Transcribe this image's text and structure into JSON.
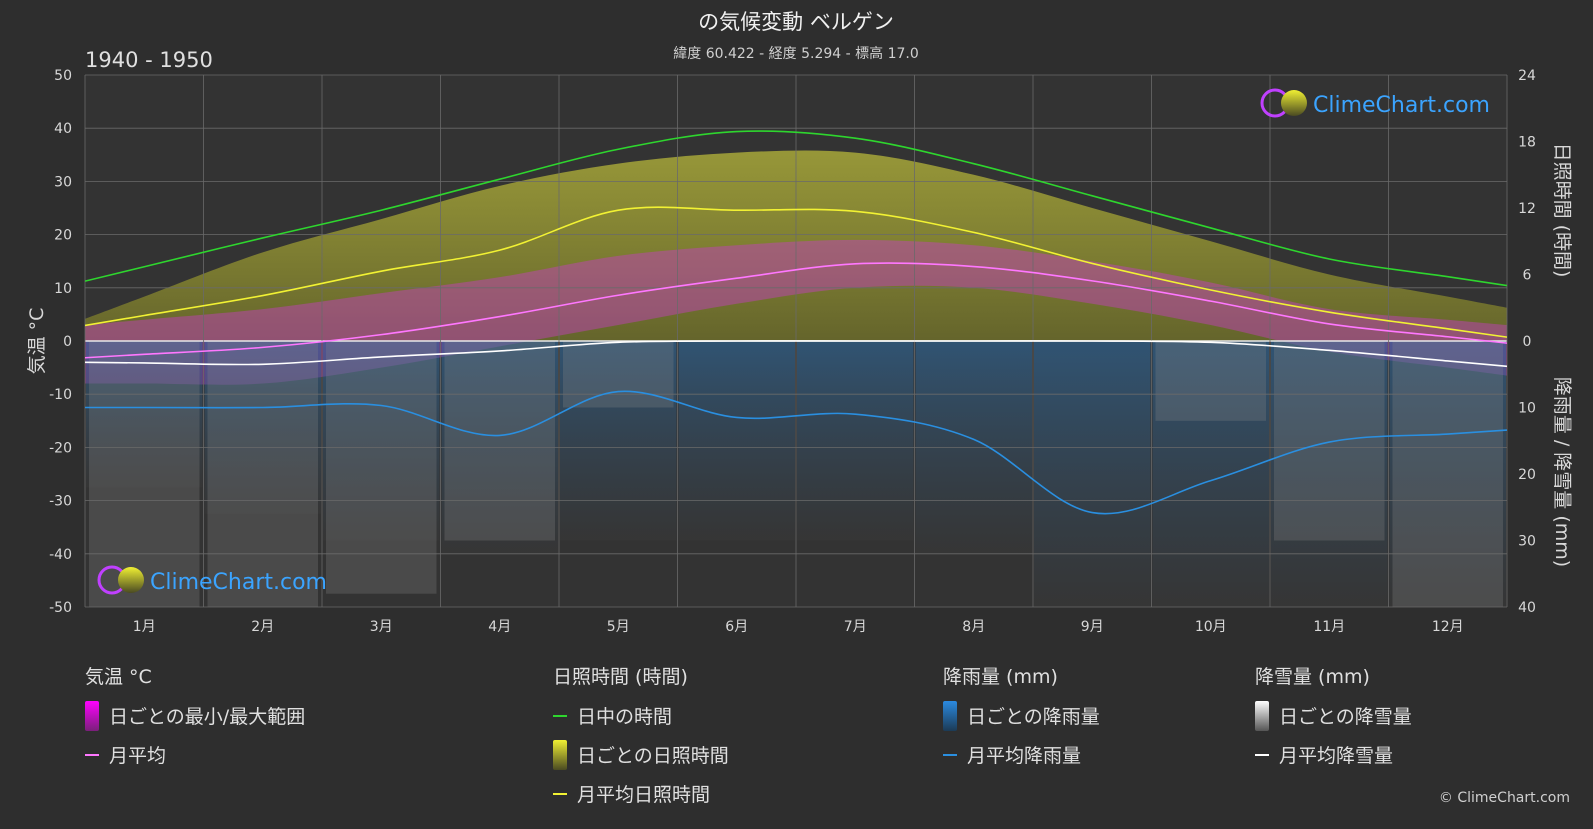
{
  "title": "の気候変動 ベルゲン",
  "subtitle": "緯度 60.422 - 経度 5.294 - 標高 17.0",
  "period": "1940 - 1950",
  "watermark": "ClimeChart.com",
  "copyright": "© ClimeChart.com",
  "colors": {
    "background": "#2e2e2e",
    "daylight": "#2ed62e",
    "sunshine_mean": "#f2f233",
    "sunshine_daily": "#a3a32c",
    "temp_range": "#c83cc8",
    "temp_mean": "#ff77ff",
    "rain_mean": "#2a8fe0",
    "rain_daily": "#2b6ea6",
    "snow_mean": "#ffffff",
    "snow_daily": "#9a9a9a",
    "brand": "#3ba4ff"
  },
  "chart_data": {
    "type": "line",
    "x_label_unit": "月",
    "categories": [
      "1月",
      "2月",
      "3月",
      "4月",
      "5月",
      "6月",
      "7月",
      "8月",
      "9月",
      "10月",
      "11月",
      "12月"
    ],
    "axes": {
      "left": {
        "label": "気温 °C",
        "range": [
          -50,
          50
        ],
        "ticks": [
          50,
          40,
          30,
          20,
          10,
          0,
          -10,
          -20,
          -30,
          -40,
          -50
        ]
      },
      "right_top": {
        "label": "日照時間 (時間)",
        "range": [
          0,
          24
        ],
        "ticks": [
          24,
          18,
          12,
          6,
          0
        ]
      },
      "right_bottom": {
        "label": "降雨量 / 降雪量 (mm)",
        "range": [
          0,
          40
        ],
        "ticks": [
          10,
          20,
          30,
          40
        ]
      }
    },
    "grid": true,
    "series": [
      {
        "name": "日中の時間",
        "unit": "時間",
        "values": [
          6.7,
          9.3,
          11.8,
          14.6,
          17.3,
          18.9,
          18.3,
          16.0,
          13.1,
          10.2,
          7.4,
          5.8
        ]
      },
      {
        "name": "月平均日照時間",
        "unit": "時間",
        "values": [
          2.3,
          4.1,
          6.3,
          8.2,
          11.8,
          11.8,
          11.7,
          9.8,
          7.0,
          4.6,
          2.6,
          1.1
        ]
      },
      {
        "name": "月平均",
        "unit": "°C",
        "values": [
          -2.5,
          -1.2,
          1.2,
          4.6,
          8.6,
          11.8,
          14.5,
          14.0,
          11.3,
          7.5,
          3.2,
          0.8
        ]
      },
      {
        "name": "月平均降雨量",
        "unit": "mm",
        "values": [
          10.0,
          10.0,
          9.7,
          14.2,
          7.6,
          11.5,
          11.0,
          14.8,
          25.8,
          21.0,
          15.2,
          14.0
        ]
      },
      {
        "name": "月平均降雪量",
        "unit": "mm",
        "values": [
          3.3,
          3.5,
          2.4,
          1.5,
          0.2,
          0,
          0,
          0,
          0,
          0.2,
          1.4,
          3.0
        ]
      }
    ],
    "daily_ranges": {
      "temp_min_max": {
        "min": [
          -8,
          -8,
          -5,
          -1,
          3,
          7,
          10,
          10,
          7,
          3,
          -2,
          -5
        ],
        "max": [
          4,
          6,
          9,
          12,
          16,
          18,
          19,
          18,
          15,
          11,
          6,
          4
        ]
      },
      "sunshine_max_envelope": [
        4,
        8,
        11,
        14,
        16,
        17,
        17,
        15,
        12,
        9,
        6,
        4
      ]
    },
    "legend": {
      "placement": "bottom",
      "groups": [
        {
          "title": "気温 °C",
          "items": [
            {
              "label": "日ごとの最小/最大範囲",
              "symbol": "range",
              "color_key": "temp_range"
            },
            {
              "label": "月平均",
              "symbol": "line",
              "color_key": "temp_mean"
            }
          ]
        },
        {
          "title": "日照時間 (時間)",
          "items": [
            {
              "label": "日中の時間",
              "symbol": "line",
              "color_key": "daylight"
            },
            {
              "label": "日ごとの日照時間",
              "symbol": "range",
              "color_key": "sunshine_daily"
            },
            {
              "label": "月平均日照時間",
              "symbol": "line",
              "color_key": "sunshine_mean"
            }
          ]
        },
        {
          "title": "降雨量 (mm)",
          "items": [
            {
              "label": "日ごとの降雨量",
              "symbol": "range",
              "color_key": "rain_daily"
            },
            {
              "label": "月平均降雨量",
              "symbol": "line",
              "color_key": "rain_mean"
            }
          ]
        },
        {
          "title": "降雪量 (mm)",
          "items": [
            {
              "label": "日ごとの降雪量",
              "symbol": "range",
              "color_key": "snow_daily"
            },
            {
              "label": "月平均降雪量",
              "symbol": "line",
              "color_key": "snow_mean"
            }
          ]
        }
      ]
    }
  }
}
